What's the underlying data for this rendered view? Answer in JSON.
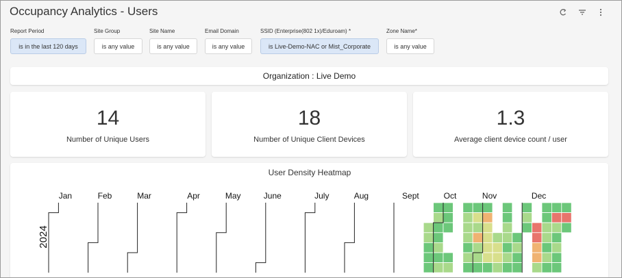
{
  "header": {
    "title": "Occupancy Analytics - Users"
  },
  "filters": [
    {
      "label": "Report Period",
      "value": "is in the last 120 days",
      "selected": true
    },
    {
      "label": "Site Group",
      "value": "is any value",
      "selected": false
    },
    {
      "label": "Site Name",
      "value": "is any value",
      "selected": false
    },
    {
      "label": "Email Domain",
      "value": "is any value",
      "selected": false
    },
    {
      "label": "SSID (Enterprise(802 1x)/Eduroam) *",
      "value": "is Live-Demo-NAC or Mist_Corporate",
      "selected": true
    },
    {
      "label": "Zone Name*",
      "value": "is any value",
      "selected": false
    }
  ],
  "organization": "Organization : Live Demo",
  "kpis": [
    {
      "value": 14,
      "label": "Number of Unique Users"
    },
    {
      "value": 18,
      "label": "Number of Unique Client Devices"
    },
    {
      "value": 1.3,
      "label": "Average client device count / user"
    }
  ],
  "heatmap": {
    "title": "User Density Heatmap",
    "year": "2024",
    "months": [
      "Jan",
      "Feb",
      "Mar",
      "Apr",
      "May",
      "June",
      "July",
      "Aug",
      "Sept",
      "Oct",
      "Nov",
      "Dec"
    ],
    "values": [
      [
        null,
        null,
        null,
        null,
        null,
        null,
        null,
        null,
        null,
        null,
        null,
        null,
        null,
        null,
        null,
        null,
        null,
        null,
        null,
        null,
        null,
        null,
        null,
        null,
        null,
        null,
        null,
        null,
        null,
        null,
        null,
        null,
        null,
        null,
        null,
        null,
        null,
        null,
        null,
        1,
        1,
        null,
        1,
        1,
        1,
        null,
        1,
        null,
        1,
        null,
        1,
        1,
        1
      ],
      [
        null,
        null,
        null,
        null,
        null,
        null,
        null,
        null,
        null,
        null,
        null,
        null,
        null,
        null,
        null,
        null,
        null,
        null,
        null,
        null,
        null,
        null,
        null,
        null,
        null,
        null,
        null,
        null,
        null,
        null,
        null,
        null,
        null,
        null,
        null,
        null,
        null,
        null,
        null,
        2,
        1,
        null,
        2,
        3,
        4,
        null,
        1,
        null,
        2,
        null,
        1,
        5,
        5
      ],
      [
        null,
        null,
        null,
        null,
        null,
        null,
        null,
        null,
        null,
        null,
        null,
        null,
        null,
        null,
        null,
        null,
        null,
        null,
        null,
        null,
        null,
        null,
        null,
        null,
        null,
        null,
        null,
        null,
        null,
        null,
        null,
        null,
        null,
        null,
        null,
        null,
        null,
        null,
        2,
        1,
        1,
        null,
        2,
        2,
        3,
        null,
        2,
        null,
        1,
        5,
        2,
        2,
        1
      ],
      [
        null,
        null,
        null,
        null,
        null,
        null,
        null,
        null,
        null,
        null,
        null,
        null,
        null,
        null,
        null,
        null,
        null,
        null,
        null,
        null,
        null,
        null,
        null,
        null,
        null,
        null,
        null,
        null,
        null,
        null,
        null,
        null,
        null,
        null,
        null,
        null,
        null,
        null,
        2,
        1,
        null,
        null,
        2,
        4,
        3,
        2,
        2,
        1,
        null,
        5,
        2,
        1,
        null
      ],
      [
        null,
        null,
        null,
        null,
        null,
        null,
        null,
        null,
        null,
        null,
        null,
        null,
        null,
        null,
        null,
        null,
        null,
        null,
        null,
        null,
        null,
        null,
        null,
        null,
        null,
        null,
        null,
        null,
        null,
        null,
        null,
        null,
        null,
        null,
        null,
        null,
        null,
        null,
        1,
        2,
        null,
        null,
        1,
        2,
        3,
        3,
        1,
        2,
        null,
        4,
        1,
        2,
        null
      ],
      [
        null,
        null,
        null,
        null,
        null,
        null,
        null,
        null,
        null,
        null,
        null,
        null,
        null,
        null,
        null,
        null,
        null,
        null,
        null,
        null,
        null,
        null,
        null,
        null,
        null,
        null,
        null,
        null,
        null,
        null,
        null,
        null,
        null,
        null,
        null,
        null,
        null,
        null,
        1,
        1,
        1,
        null,
        2,
        2,
        3,
        3,
        2,
        1,
        null,
        4,
        2,
        1,
        null
      ],
      [
        null,
        null,
        null,
        null,
        null,
        null,
        null,
        null,
        null,
        null,
        null,
        null,
        null,
        null,
        null,
        null,
        null,
        null,
        null,
        null,
        null,
        null,
        null,
        null,
        null,
        null,
        null,
        null,
        null,
        null,
        null,
        null,
        null,
        null,
        null,
        null,
        null,
        null,
        1,
        2,
        2,
        null,
        1,
        1,
        1,
        2,
        1,
        1,
        null,
        2,
        1,
        1,
        null
      ]
    ],
    "colors": [
      "#6cc77a",
      "#a9d98b",
      "#d8df8c",
      "#f0b372",
      "#e8756c"
    ]
  }
}
